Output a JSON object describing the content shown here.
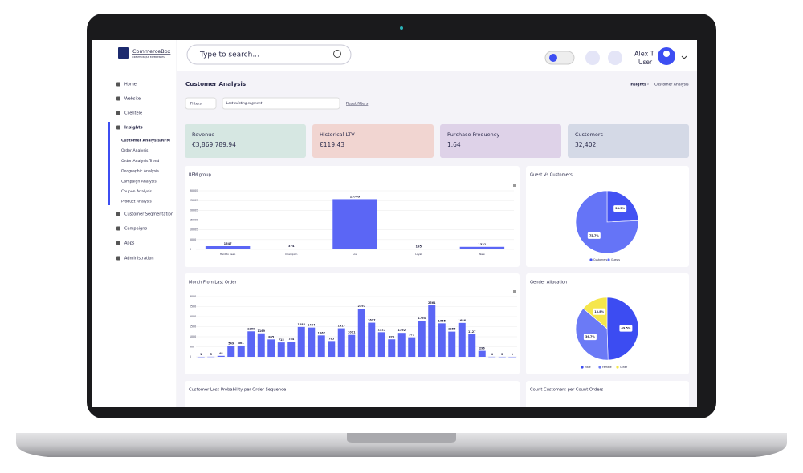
{
  "brand": {
    "name": "CommerceBox",
    "tagline": "CREATE UNIQUE EXPERIENCES"
  },
  "header": {
    "search_placeholder": "Type to search...",
    "user_name": "Alex T",
    "user_role": "User"
  },
  "sidebar": {
    "items": [
      "Home",
      "Website",
      "Clientele",
      "Insights",
      "Customer Segmentation",
      "Campaigns",
      "Apps",
      "Administration"
    ],
    "submenu": [
      "Customer Analysis/RFM",
      "Order Analysis",
      "Order Analysis Trend",
      "Geographic Analysis",
      "Campaign Analysis",
      "Coupon Analysis",
      "Product Analysis"
    ]
  },
  "page": {
    "title": "Customer Analysis",
    "breadcrumb": [
      "Insights",
      "Customer Analysis"
    ]
  },
  "filters": {
    "label": "Filters",
    "segment_placeholder": "Last existing segment",
    "reset": "Reset filters"
  },
  "kpis": [
    {
      "label": "Revenue",
      "value": "€3,869,789.94",
      "color": "#d6e7e2"
    },
    {
      "label": "Historical LTV",
      "value": "€119.43",
      "color": "#f1d5d1"
    },
    {
      "label": "Purchase Frequency",
      "value": "1.64",
      "color": "#ded2e8"
    },
    {
      "label": "Customers",
      "value": "32,402",
      "color": "#d4d9e6"
    }
  ],
  "rfm_chart": {
    "type": "bar",
    "title": "RFM group",
    "categories": [
      "Hard to Keep",
      "Champion",
      "Lost",
      "Loyal",
      "New"
    ],
    "values": [
      1647,
      374,
      25709,
      195,
      1321
    ],
    "color": "#5b66f5",
    "ylim": [
      0,
      30000
    ],
    "yticks": [
      0,
      5000,
      10000,
      15000,
      20000,
      25000,
      30000
    ],
    "grid": true
  },
  "month_chart": {
    "type": "bar",
    "title": "Month From Last Order",
    "categories": [
      null,
      null,
      null,
      null,
      null,
      null,
      null,
      null,
      null,
      null,
      null,
      null,
      null,
      null,
      null,
      null,
      null,
      null,
      null,
      null,
      null,
      null,
      null,
      null,
      null,
      null,
      null,
      null,
      null,
      null,
      null,
      null
    ],
    "values": [
      1,
      5,
      48,
      549,
      561,
      1269,
      1169,
      865,
      715,
      754,
      1485,
      1454,
      1067,
      785,
      1417,
      1091,
      2397,
      1697,
      1225,
      870,
      1192,
      973,
      1794,
      2561,
      1665,
      1256,
      1686,
      1127,
      296,
      4,
      2,
      1
    ],
    "color": "#5b66f5",
    "ylim": [
      0,
      3000
    ],
    "yticks": [
      0,
      500,
      1000,
      1500,
      2000,
      2500,
      3000
    ],
    "grid": true
  },
  "guest_chart": {
    "type": "pie",
    "title": "Guest Vs Customers",
    "categories": [
      "Customers",
      "Guests"
    ],
    "values": [
      24.3,
      75.7
    ],
    "value_labels": [
      "24.3%",
      "75.7%"
    ],
    "colors": [
      "#4352f3",
      "#6574f7"
    ]
  },
  "gender_chart": {
    "type": "pie",
    "title": "Gender Allocation",
    "categories": [
      "Male",
      "Female",
      "Other"
    ],
    "values": [
      49.5,
      36.7,
      13.8
    ],
    "value_labels": [
      "49.5%",
      "36.7%",
      "13.8%"
    ],
    "colors": [
      "#3c4cf2",
      "#6b7af6",
      "#f5e64c"
    ]
  },
  "bottom_cards": [
    "Customer Loss Probability per Order Sequence",
    "Count Customers per Count Orders"
  ]
}
